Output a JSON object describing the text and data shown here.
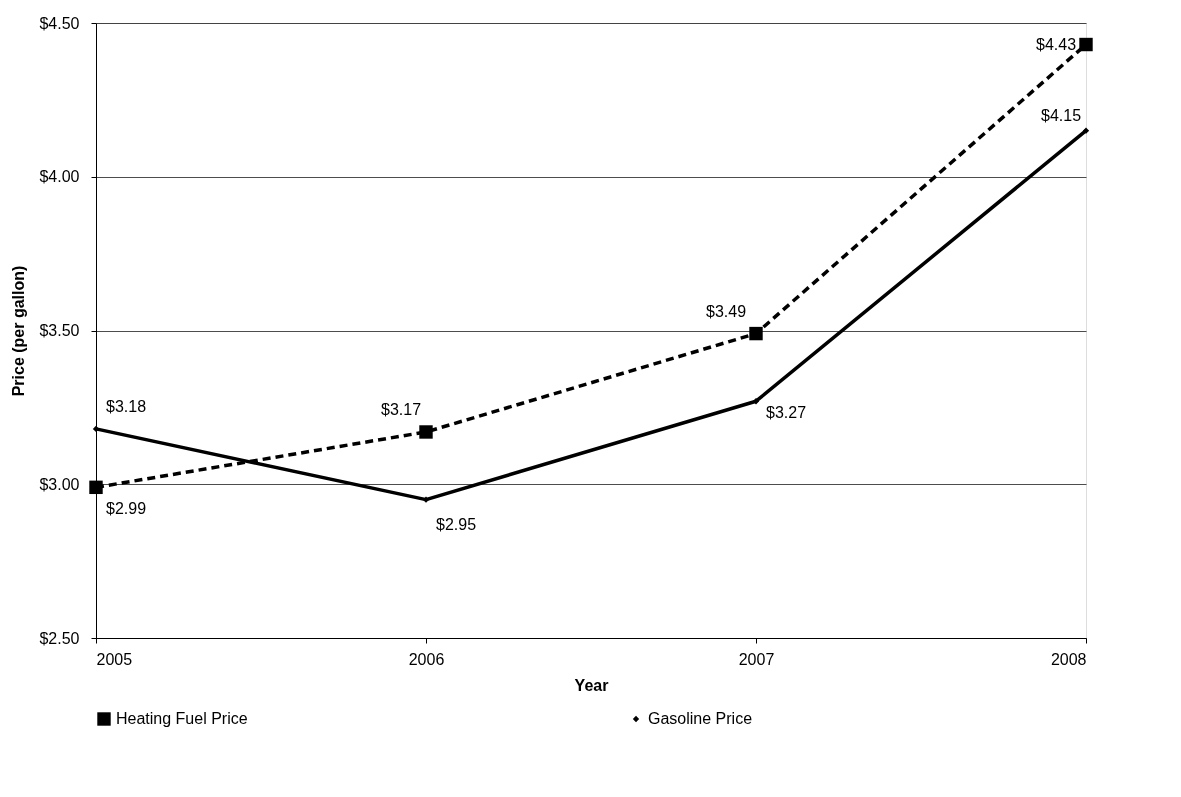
{
  "chart_data": {
    "type": "line",
    "xlabel": "Year",
    "ylabel": "Price (per gallon)",
    "x": [
      2005,
      2006,
      2007,
      2008
    ],
    "xlim": [
      2005,
      2008
    ],
    "xticks": [
      2005,
      2006,
      2007,
      2008
    ],
    "ylim": [
      2.5,
      4.5
    ],
    "yticks": [
      {
        "value": 2.5,
        "label": "$2.50"
      },
      {
        "value": 3.0,
        "label": "$3.00"
      },
      {
        "value": 3.5,
        "label": "$3.50"
      },
      {
        "value": 4.0,
        "label": "$4.00"
      },
      {
        "value": 4.5,
        "label": "$4.50"
      }
    ],
    "grid": "y",
    "legend": "bottom",
    "series": [
      {
        "name": "Heating Fuel Price",
        "color": "#000000",
        "marker": "square",
        "line_style": "dashed",
        "values": [
          2.99,
          3.17,
          3.49,
          4.43
        ],
        "value_labels": [
          "$2.99",
          "$3.17",
          "$3.49",
          "$4.43"
        ]
      },
      {
        "name": "Gasoline Price",
        "color": "#000000",
        "marker": "diamond",
        "line_style": "solid",
        "values": [
          3.18,
          2.95,
          3.27,
          4.15
        ],
        "value_labels": [
          "$3.18",
          "$2.95",
          "$3.27",
          "$4.15"
        ]
      }
    ]
  }
}
